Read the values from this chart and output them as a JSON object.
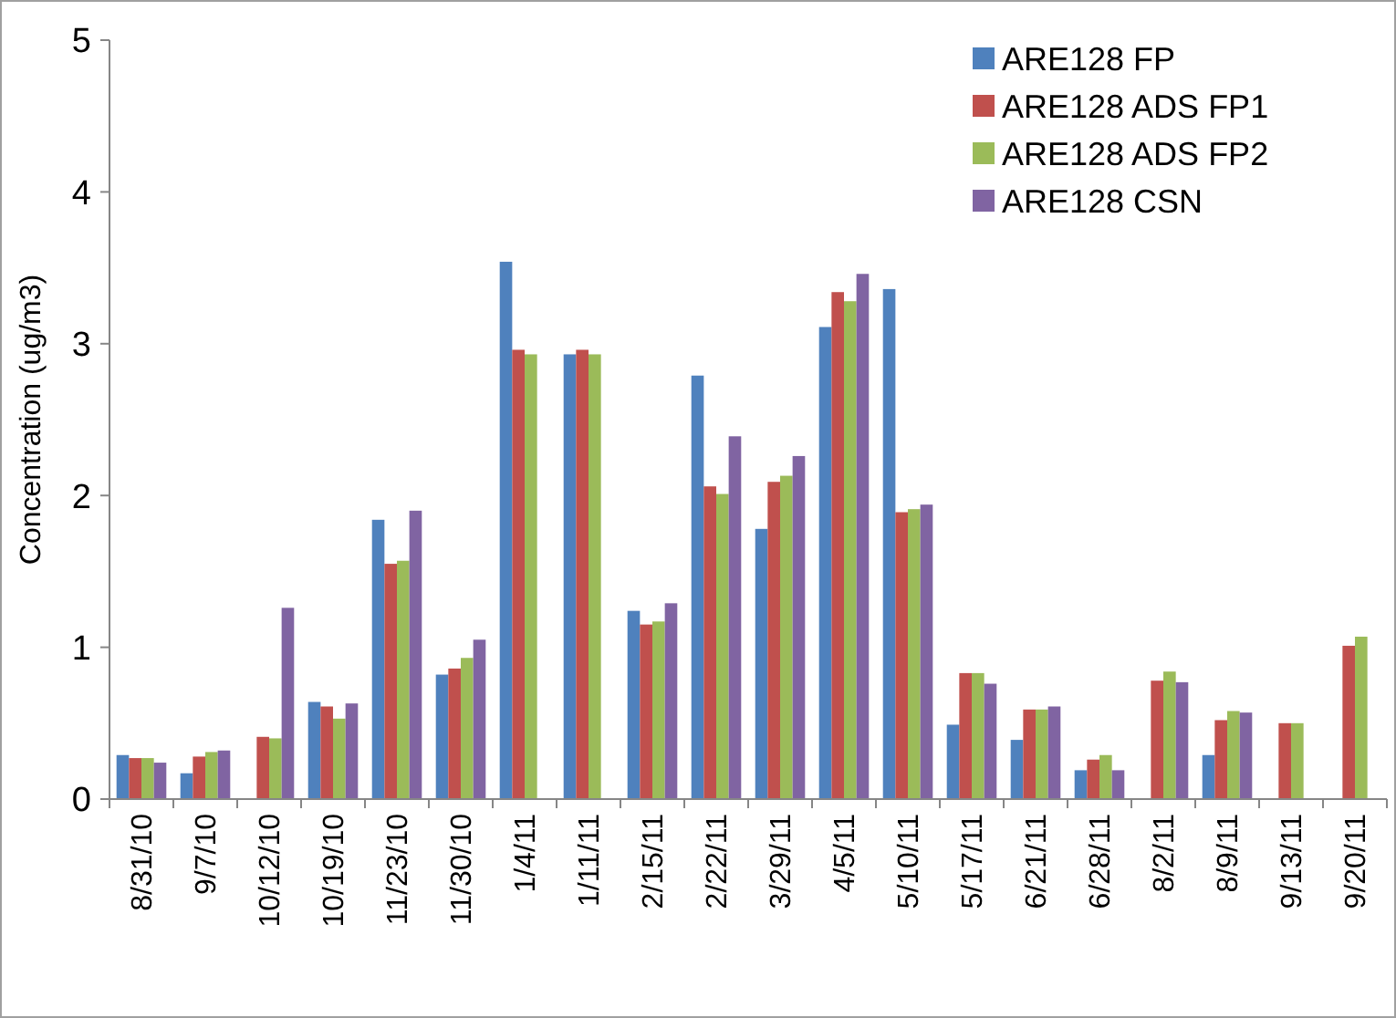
{
  "chart_data": {
    "type": "bar",
    "ylabel": "Concentration (ug/m3)",
    "categories": [
      "8/31/10",
      "9/7/10",
      "10/12/10",
      "10/19/10",
      "11/23/10",
      "11/30/10",
      "1/4/11",
      "1/11/11",
      "2/15/11",
      "2/22/11",
      "3/29/11",
      "4/5/11",
      "5/10/11",
      "5/17/11",
      "6/21/11",
      "6/28/11",
      "8/2/11",
      "8/9/11",
      "9/13/11",
      "9/20/11"
    ],
    "series": [
      {
        "name": "ARE128 FP",
        "color": "#4f81bd",
        "values": [
          0.29,
          0.17,
          null,
          0.64,
          1.84,
          0.82,
          3.54,
          2.93,
          1.24,
          2.79,
          1.78,
          3.11,
          3.36,
          0.49,
          0.39,
          0.19,
          null,
          0.29,
          null,
          null
        ]
      },
      {
        "name": "ARE128 ADS FP1",
        "color": "#c0504d",
        "values": [
          0.27,
          0.28,
          0.41,
          0.61,
          1.55,
          0.86,
          2.96,
          2.96,
          1.15,
          2.06,
          2.09,
          3.34,
          1.89,
          0.83,
          0.59,
          0.26,
          0.78,
          0.52,
          0.5,
          1.01
        ]
      },
      {
        "name": "ARE128 ADS FP2",
        "color": "#9bbb59",
        "values": [
          0.27,
          0.31,
          0.4,
          0.53,
          1.57,
          0.93,
          2.93,
          2.93,
          1.17,
          2.01,
          2.13,
          3.28,
          1.91,
          0.83,
          0.59,
          0.29,
          0.84,
          0.58,
          0.5,
          1.07
        ]
      },
      {
        "name": "ARE128 CSN",
        "color": "#8064a2",
        "values": [
          0.24,
          0.32,
          1.26,
          0.63,
          1.9,
          1.05,
          null,
          null,
          1.29,
          2.39,
          2.26,
          3.46,
          1.94,
          0.76,
          0.61,
          0.19,
          0.77,
          0.57,
          null,
          null
        ]
      }
    ],
    "ylim": [
      0,
      5
    ],
    "yticks": [
      0,
      1,
      2,
      3,
      4,
      5
    ],
    "grid": false,
    "legend": "top right"
  }
}
